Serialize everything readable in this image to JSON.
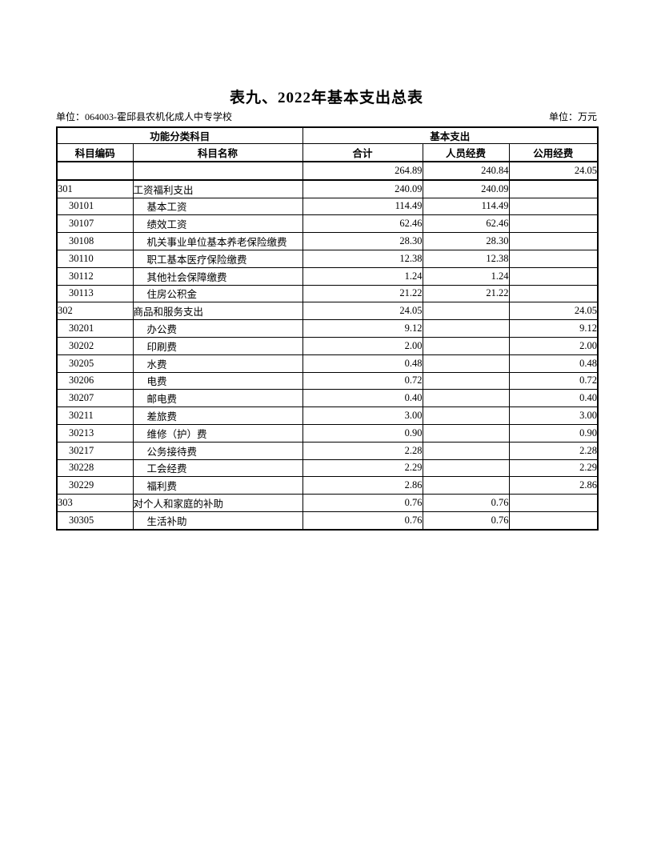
{
  "page": {
    "title": "表九、2022年基本支出总表",
    "unit_left": "单位：064003-霍邱县农机化成人中专学校",
    "unit_right": "单位：万元"
  },
  "table": {
    "header": {
      "group_left": "功能分类科目",
      "group_right": "基本支出",
      "columns": [
        "科目编码",
        "科目名称",
        "合计",
        "人员经费",
        "公用经费"
      ]
    },
    "rows": [
      {
        "code": "",
        "name": "",
        "total": "264.89",
        "personnel": "240.84",
        "public": "24.05",
        "level": 0
      },
      {
        "code": "301",
        "name": "工资福利支出",
        "total": "240.09",
        "personnel": "240.09",
        "public": "",
        "level": 0
      },
      {
        "code": "30101",
        "name": "基本工资",
        "total": "114.49",
        "personnel": "114.49",
        "public": "",
        "level": 1
      },
      {
        "code": "30107",
        "name": "绩效工资",
        "total": "62.46",
        "personnel": "62.46",
        "public": "",
        "level": 1
      },
      {
        "code": "30108",
        "name": "机关事业单位基本养老保险缴费",
        "total": "28.30",
        "personnel": "28.30",
        "public": "",
        "level": 1
      },
      {
        "code": "30110",
        "name": "职工基本医疗保险缴费",
        "total": "12.38",
        "personnel": "12.38",
        "public": "",
        "level": 1
      },
      {
        "code": "30112",
        "name": "其他社会保障缴费",
        "total": "1.24",
        "personnel": "1.24",
        "public": "",
        "level": 1
      },
      {
        "code": "30113",
        "name": "住房公积金",
        "total": "21.22",
        "personnel": "21.22",
        "public": "",
        "level": 1
      },
      {
        "code": "302",
        "name": "商品和服务支出",
        "total": "24.05",
        "personnel": "",
        "public": "24.05",
        "level": 0
      },
      {
        "code": "30201",
        "name": "办公费",
        "total": "9.12",
        "personnel": "",
        "public": "9.12",
        "level": 1
      },
      {
        "code": "30202",
        "name": "印刷费",
        "total": "2.00",
        "personnel": "",
        "public": "2.00",
        "level": 1
      },
      {
        "code": "30205",
        "name": "水费",
        "total": "0.48",
        "personnel": "",
        "public": "0.48",
        "level": 1
      },
      {
        "code": "30206",
        "name": "电费",
        "total": "0.72",
        "personnel": "",
        "public": "0.72",
        "level": 1
      },
      {
        "code": "30207",
        "name": "邮电费",
        "total": "0.40",
        "personnel": "",
        "public": "0.40",
        "level": 1
      },
      {
        "code": "30211",
        "name": "差旅费",
        "total": "3.00",
        "personnel": "",
        "public": "3.00",
        "level": 1
      },
      {
        "code": "30213",
        "name": "维修（护）费",
        "total": "0.90",
        "personnel": "",
        "public": "0.90",
        "level": 1
      },
      {
        "code": "30217",
        "name": "公务接待费",
        "total": "2.28",
        "personnel": "",
        "public": "2.28",
        "level": 1
      },
      {
        "code": "30228",
        "name": "工会经费",
        "total": "2.29",
        "personnel": "",
        "public": "2.29",
        "level": 1
      },
      {
        "code": "30229",
        "name": "福利费",
        "total": "2.86",
        "personnel": "",
        "public": "2.86",
        "level": 1
      },
      {
        "code": "303",
        "name": "对个人和家庭的补助",
        "total": "0.76",
        "personnel": "0.76",
        "public": "",
        "level": 0
      },
      {
        "code": "30305",
        "name": "生活补助",
        "total": "0.76",
        "personnel": "0.76",
        "public": "",
        "level": 1
      }
    ]
  }
}
